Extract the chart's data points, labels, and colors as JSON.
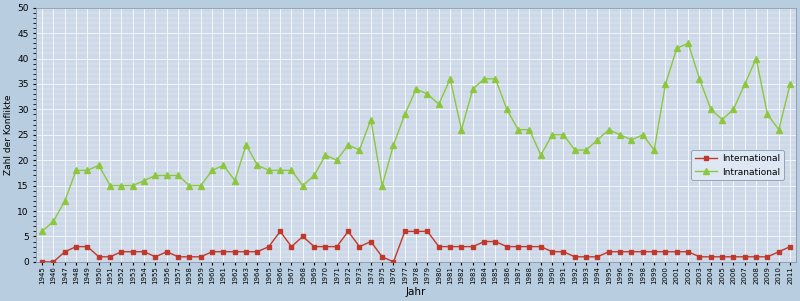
{
  "years": [
    1945,
    1946,
    1947,
    1948,
    1949,
    1950,
    1951,
    1952,
    1953,
    1954,
    1955,
    1956,
    1957,
    1958,
    1959,
    1960,
    1961,
    1962,
    1963,
    1964,
    1965,
    1966,
    1967,
    1968,
    1969,
    1970,
    1971,
    1972,
    1973,
    1974,
    1975,
    1976,
    1977,
    1978,
    1979,
    1980,
    1981,
    1982,
    1983,
    1984,
    1985,
    1986,
    1987,
    1988,
    1989,
    1990,
    1991,
    1992,
    1993,
    1994,
    1995,
    1996,
    1997,
    1998,
    1999,
    2000,
    2001,
    2002,
    2003,
    2004,
    2005,
    2006,
    2007,
    2008,
    2009,
    2010,
    2011
  ],
  "international": [
    0,
    0,
    2,
    3,
    3,
    1,
    1,
    2,
    2,
    2,
    1,
    2,
    1,
    1,
    1,
    2,
    2,
    2,
    2,
    2,
    3,
    6,
    3,
    5,
    3,
    3,
    3,
    6,
    3,
    4,
    1,
    0,
    6,
    6,
    6,
    3,
    3,
    3,
    3,
    4,
    4,
    3,
    3,
    3,
    3,
    2,
    2,
    1,
    1,
    1,
    2,
    2,
    2,
    2,
    2,
    2,
    2,
    2,
    1,
    1,
    1,
    1,
    1,
    1,
    1,
    2,
    3
  ],
  "intranational": [
    6,
    8,
    12,
    18,
    18,
    19,
    15,
    15,
    15,
    16,
    17,
    17,
    17,
    15,
    15,
    18,
    19,
    16,
    23,
    19,
    18,
    18,
    18,
    15,
    17,
    21,
    20,
    23,
    22,
    28,
    15,
    23,
    29,
    34,
    33,
    31,
    36,
    26,
    34,
    36,
    36,
    30,
    26,
    26,
    21,
    25,
    25,
    22,
    22,
    24,
    26,
    25,
    24,
    25,
    22,
    35,
    42,
    43,
    36,
    30,
    28,
    30,
    35,
    40,
    29,
    26,
    35
  ],
  "intl_color": "#c0392b",
  "intra_color": "#8dc63f",
  "bg_color": "#cdd9e8",
  "grid_color": "#b8cde0",
  "fig_bg": "#b8cde0",
  "ylabel": "Zahl der Konflikte",
  "xlabel": "Jahr",
  "ylim": [
    0,
    50
  ],
  "yticks": [
    0,
    5,
    10,
    15,
    20,
    25,
    30,
    35,
    40,
    45,
    50
  ],
  "legend_intl": "International",
  "legend_intra": "Intranational"
}
